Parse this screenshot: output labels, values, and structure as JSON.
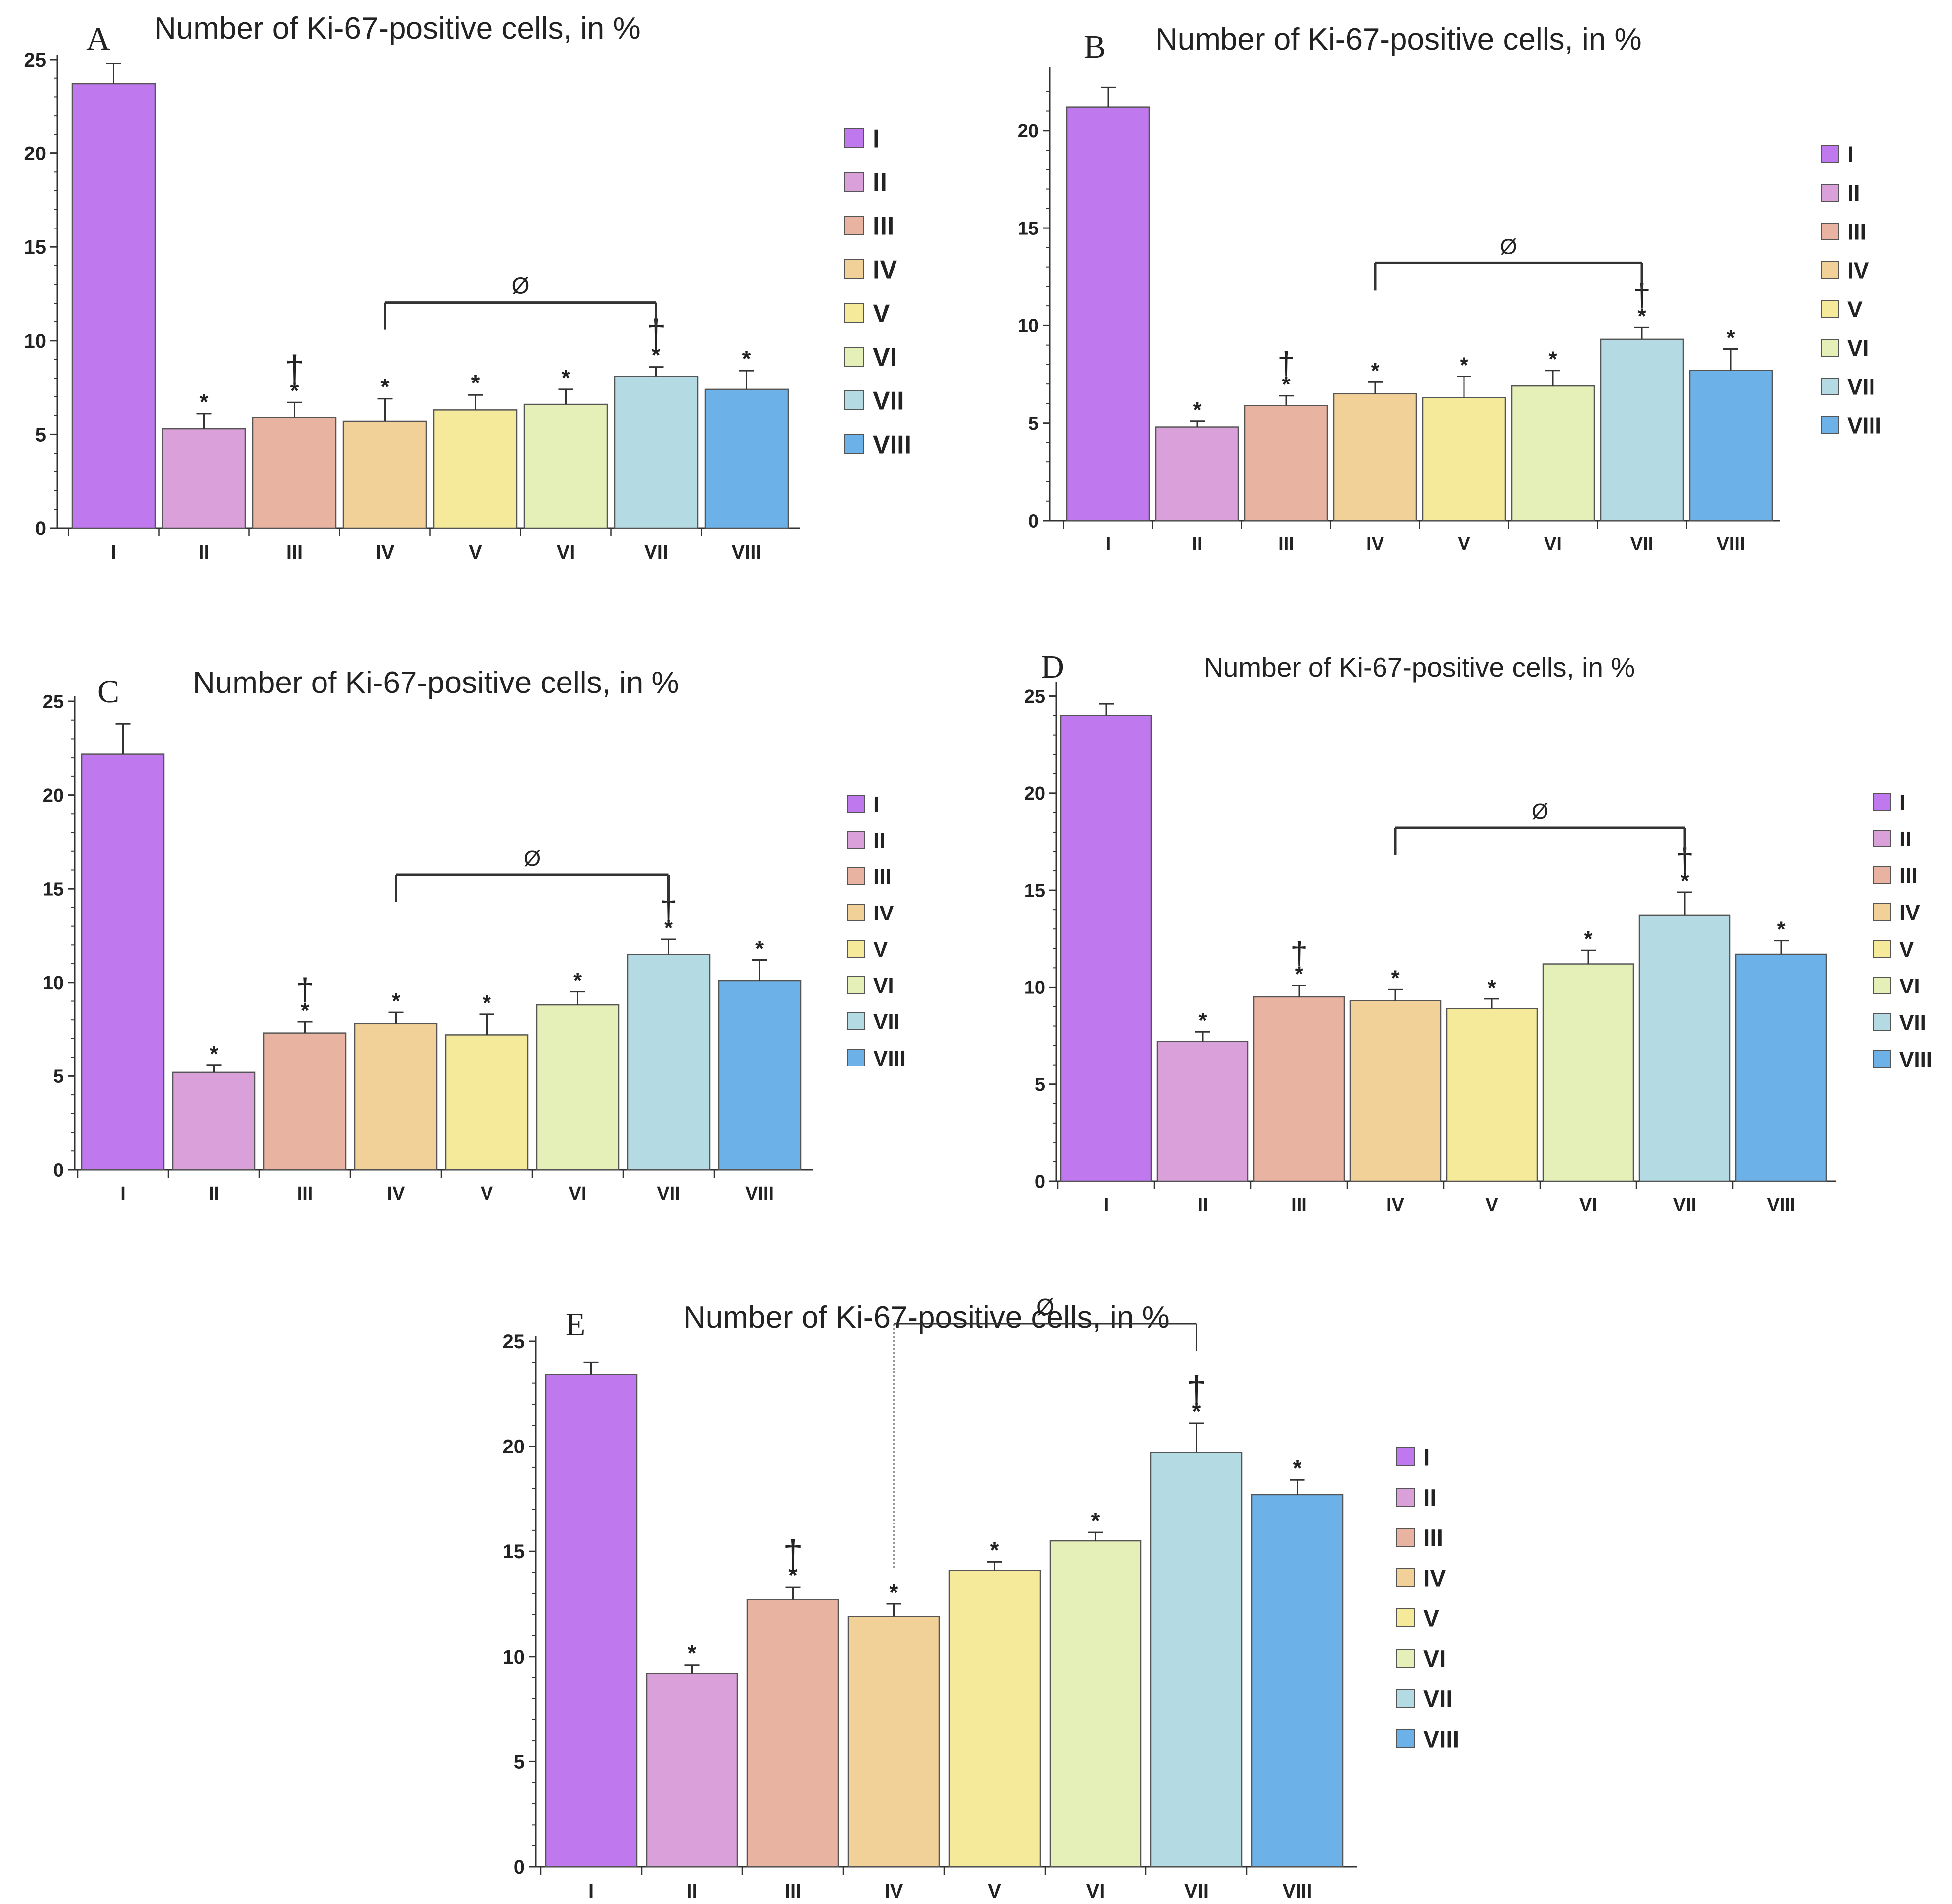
{
  "figure_title": "Number of Ki-67-positive cells, in %",
  "colors": {
    "I": "#bf78ee",
    "II": "#d9a0da",
    "III": "#e8b3a0",
    "IV": "#f1d197",
    "V": "#f4ea99",
    "VI": "#e4f0b8",
    "VII": "#b4dbe4",
    "VIII": "#6cb1e8",
    "axis": "#333333",
    "text": "#222222"
  },
  "chart_data": [
    {
      "panel": "A",
      "type": "bar",
      "title": "Number of Ki-67-positive cells, in %",
      "categories": [
        "I",
        "II",
        "III",
        "IV",
        "V",
        "VI",
        "VII",
        "VIII"
      ],
      "values": [
        23.7,
        5.3,
        5.9,
        5.7,
        6.3,
        6.6,
        8.1,
        7.4
      ],
      "errors": [
        1.1,
        0.8,
        0.8,
        1.2,
        0.8,
        0.8,
        0.5,
        1.0
      ],
      "star_marks": [
        "",
        "*",
        "*",
        "*",
        "*",
        "*",
        "*",
        "*"
      ],
      "dagger_marks": [
        "",
        "",
        "†",
        "",
        "",
        "",
        "†",
        ""
      ],
      "bracket": {
        "label": "Ø",
        "from": "IV",
        "to": "VII"
      },
      "ylim": [
        0,
        25
      ],
      "yticks": [
        0,
        5,
        10,
        15,
        20,
        25
      ],
      "xlabel": "",
      "ylabel": "",
      "legend": [
        "I",
        "II",
        "III",
        "IV",
        "V",
        "VI",
        "VII",
        "VIII"
      ]
    },
    {
      "panel": "B",
      "type": "bar",
      "title": "Number of Ki-67-positive cells, in %",
      "categories": [
        "I",
        "II",
        "III",
        "IV",
        "V",
        "VI",
        "VII",
        "VIII"
      ],
      "values": [
        21.2,
        4.8,
        5.9,
        6.5,
        6.3,
        6.9,
        9.3,
        7.7
      ],
      "errors": [
        1.0,
        0.3,
        0.5,
        0.6,
        1.1,
        0.8,
        0.6,
        1.1
      ],
      "star_marks": [
        "",
        "*",
        "*",
        "*",
        "*",
        "*",
        "*",
        "*"
      ],
      "dagger_marks": [
        "",
        "",
        "†",
        "",
        "",
        "",
        "†",
        ""
      ],
      "bracket": {
        "label": "Ø",
        "from": "IV",
        "to": "VII"
      },
      "ylim": [
        0,
        23
      ],
      "yticks": [
        0,
        5,
        10,
        15,
        20
      ],
      "xlabel": "",
      "ylabel": "",
      "legend": [
        "I",
        "II",
        "III",
        "IV",
        "V",
        "VI",
        "VII",
        "VIII"
      ]
    },
    {
      "panel": "C",
      "type": "bar",
      "title": "Number of Ki-67-positive cells, in %",
      "categories": [
        "I",
        "II",
        "III",
        "IV",
        "V",
        "VI",
        "VII",
        "VIII"
      ],
      "values": [
        22.2,
        5.2,
        7.3,
        7.8,
        7.2,
        8.8,
        11.5,
        10.1
      ],
      "errors": [
        1.6,
        0.4,
        0.6,
        0.6,
        1.1,
        0.7,
        0.8,
        1.1
      ],
      "star_marks": [
        "",
        "*",
        "*",
        "*",
        "*",
        "*",
        "*",
        "*"
      ],
      "dagger_marks": [
        "",
        "",
        "†",
        "",
        "",
        "",
        "†",
        ""
      ],
      "bracket": {
        "label": "Ø",
        "from": "IV",
        "to": "VII"
      },
      "ylim": [
        0,
        25
      ],
      "yticks": [
        0,
        5,
        10,
        15,
        20,
        25
      ],
      "xlabel": "",
      "ylabel": "",
      "legend": [
        "I",
        "II",
        "III",
        "IV",
        "V",
        "VI",
        "VII",
        "VIII"
      ]
    },
    {
      "panel": "D",
      "type": "bar",
      "title": "Number of Ki-67-positive cells, in %",
      "categories": [
        "I",
        "II",
        "III",
        "IV",
        "V",
        "VI",
        "VII",
        "VIII"
      ],
      "values": [
        24.0,
        7.2,
        9.5,
        9.3,
        8.9,
        11.2,
        13.7,
        11.7
      ],
      "errors": [
        0.6,
        0.5,
        0.6,
        0.6,
        0.5,
        0.7,
        1.2,
        0.7
      ],
      "star_marks": [
        "",
        "*",
        "*",
        "*",
        "*",
        "*",
        "*",
        "*"
      ],
      "dagger_marks": [
        "",
        "",
        "†",
        "",
        "",
        "",
        "†",
        ""
      ],
      "bracket": {
        "label": "Ø",
        "from": "IV",
        "to": "VII"
      },
      "ylim": [
        0,
        25.5
      ],
      "yticks": [
        0,
        5,
        10,
        15,
        20,
        25
      ],
      "xlabel": "",
      "ylabel": "",
      "legend": [
        "I",
        "II",
        "III",
        "IV",
        "V",
        "VI",
        "VII",
        "VIII"
      ]
    },
    {
      "panel": "E",
      "type": "bar",
      "title": "Number of Ki-67-positive cells, in %",
      "categories": [
        "I",
        "II",
        "III",
        "IV",
        "V",
        "VI",
        "VII",
        "VIII"
      ],
      "values": [
        23.4,
        9.2,
        12.7,
        11.9,
        14.1,
        15.5,
        19.7,
        17.7
      ],
      "errors": [
        0.6,
        0.4,
        0.6,
        0.6,
        0.4,
        0.4,
        1.4,
        0.7
      ],
      "star_marks": [
        "",
        "*",
        "*",
        "*",
        "*",
        "*",
        "*",
        "*"
      ],
      "dagger_marks": [
        "",
        "",
        "†",
        "",
        "",
        "",
        "†",
        ""
      ],
      "bracket": {
        "label": "Ø",
        "from": "IV",
        "to": "VII"
      },
      "ylim": [
        0,
        25
      ],
      "yticks": [
        0,
        5,
        10,
        15,
        20,
        25
      ],
      "xlabel": "",
      "ylabel": "",
      "legend": [
        "I",
        "II",
        "III",
        "IV",
        "V",
        "VI",
        "VII",
        "VIII"
      ]
    }
  ]
}
